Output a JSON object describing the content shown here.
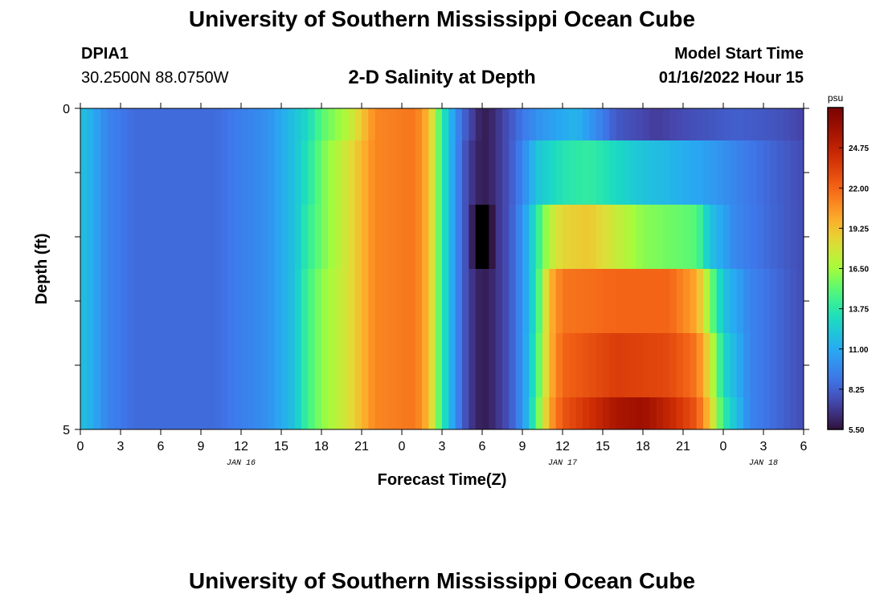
{
  "header": {
    "title": "University of Southern Mississippi Ocean Cube",
    "station_id": "DPIA1",
    "station_coords": "30.2500N  88.0750W",
    "chart_title": "2-D Salinity at Depth",
    "model_start_label": "Model Start Time",
    "model_start_value": "01/16/2022 Hour 15"
  },
  "footer": {
    "title": "University of Southern Mississippi Ocean Cube"
  },
  "chart_data": {
    "type": "heatmap",
    "title": "2-D Salinity at Depth",
    "xlabel": "Forecast Time(Z)",
    "ylabel": "Depth (ft)",
    "units": "psu",
    "xlim": [
      0,
      54
    ],
    "ylim": [
      0,
      5
    ],
    "x_tick_values": [
      0,
      3,
      6,
      9,
      12,
      15,
      18,
      21,
      24,
      27,
      30,
      33,
      36,
      39,
      42,
      45,
      48,
      51,
      54
    ],
    "x_tick_labels": [
      "0",
      "3",
      "6",
      "9",
      "12",
      "15",
      "18",
      "21",
      "0",
      "3",
      "6",
      "9",
      "12",
      "15",
      "18",
      "21",
      "0",
      "3",
      "6"
    ],
    "y_tick_labels": [
      "0",
      "5"
    ],
    "date_labels": [
      {
        "text": "JAN 16",
        "x": 12
      },
      {
        "text": "JAN 17",
        "x": 36
      },
      {
        "text": "JAN 18",
        "x": 51
      }
    ],
    "colorbar": {
      "label": "psu",
      "ticks": [
        "24.75",
        "22.00",
        "19.25",
        "16.50",
        "13.75",
        "11.00",
        "8.25",
        "5.50"
      ],
      "range": [
        5.5,
        27.5
      ]
    },
    "depth_layers": [
      0,
      0.5,
      1.5,
      2.5,
      3.5,
      4.5
    ],
    "layers": [
      {
        "depth": 0,
        "salinity_by_hour": [
          {
            "x": 0,
            "v": 12.0
          },
          {
            "x": 1,
            "v": 11.0
          },
          {
            "x": 2,
            "v": 9.5
          },
          {
            "x": 4,
            "v": 8.6
          },
          {
            "x": 10,
            "v": 8.6
          },
          {
            "x": 12,
            "v": 9.3
          },
          {
            "x": 14,
            "v": 10.0
          },
          {
            "x": 16,
            "v": 12.0
          },
          {
            "x": 17,
            "v": 13.0
          },
          {
            "x": 18,
            "v": 15.0
          },
          {
            "x": 20,
            "v": 17.0
          },
          {
            "x": 22,
            "v": 21.0
          },
          {
            "x": 25,
            "v": 21.5
          },
          {
            "x": 26,
            "v": 19.5
          },
          {
            "x": 27,
            "v": 14.0
          },
          {
            "x": 28,
            "v": 10.0
          },
          {
            "x": 29,
            "v": 7.5
          },
          {
            "x": 30,
            "v": 5.8
          },
          {
            "x": 31,
            "v": 6.5
          },
          {
            "x": 32,
            "v": 7.8
          },
          {
            "x": 33,
            "v": 9.0
          },
          {
            "x": 34,
            "v": 10.0
          },
          {
            "x": 37,
            "v": 11.5
          },
          {
            "x": 40,
            "v": 8.0
          },
          {
            "x": 43,
            "v": 7.0
          },
          {
            "x": 45,
            "v": 7.5
          },
          {
            "x": 49,
            "v": 8.2
          },
          {
            "x": 52,
            "v": 7.8
          },
          {
            "x": 54,
            "v": 7.2
          }
        ]
      },
      {
        "depth": 0.5,
        "salinity_by_hour": [
          {
            "x": 0,
            "v": 12.0
          },
          {
            "x": 1,
            "v": 11.0
          },
          {
            "x": 2,
            "v": 9.5
          },
          {
            "x": 4,
            "v": 8.6
          },
          {
            "x": 10,
            "v": 8.6
          },
          {
            "x": 12,
            "v": 9.3
          },
          {
            "x": 14,
            "v": 10.0
          },
          {
            "x": 16,
            "v": 12.0
          },
          {
            "x": 17,
            "v": 13.5
          },
          {
            "x": 18,
            "v": 15.5
          },
          {
            "x": 20,
            "v": 18.0
          },
          {
            "x": 22,
            "v": 21.0
          },
          {
            "x": 25,
            "v": 21.5
          },
          {
            "x": 26,
            "v": 19.5
          },
          {
            "x": 27,
            "v": 14.0
          },
          {
            "x": 28,
            "v": 10.0
          },
          {
            "x": 29,
            "v": 7.0
          },
          {
            "x": 30,
            "v": 5.8
          },
          {
            "x": 31,
            "v": 6.5
          },
          {
            "x": 32,
            "v": 7.8
          },
          {
            "x": 33,
            "v": 9.5
          },
          {
            "x": 34,
            "v": 12.0
          },
          {
            "x": 36,
            "v": 13.5
          },
          {
            "x": 38,
            "v": 14.0
          },
          {
            "x": 40,
            "v": 13.0
          },
          {
            "x": 42,
            "v": 12.0
          },
          {
            "x": 44,
            "v": 11.5
          },
          {
            "x": 47,
            "v": 10.5
          },
          {
            "x": 50,
            "v": 9.0
          },
          {
            "x": 54,
            "v": 7.5
          }
        ]
      },
      {
        "depth": 1.5,
        "salinity_by_hour": [
          {
            "x": 0,
            "v": 12.0
          },
          {
            "x": 1,
            "v": 11.0
          },
          {
            "x": 2,
            "v": 9.5
          },
          {
            "x": 4,
            "v": 8.6
          },
          {
            "x": 10,
            "v": 8.6
          },
          {
            "x": 12,
            "v": 9.3
          },
          {
            "x": 14,
            "v": 10.0
          },
          {
            "x": 16,
            "v": 12.0
          },
          {
            "x": 17,
            "v": 14.0
          },
          {
            "x": 18,
            "v": 15.5
          },
          {
            "x": 20,
            "v": 18.0
          },
          {
            "x": 22,
            "v": 21.0
          },
          {
            "x": 25,
            "v": 21.5
          },
          {
            "x": 26,
            "v": 19.5
          },
          {
            "x": 27,
            "v": 14.0
          },
          {
            "x": 28,
            "v": 10.0
          },
          {
            "x": 29,
            "v": 7.0
          },
          {
            "x": 30,
            "v": 3.0
          },
          {
            "x": 31,
            "v": 6.5
          },
          {
            "x": 32,
            "v": 7.8
          },
          {
            "x": 33,
            "v": 10.0
          },
          {
            "x": 34,
            "v": 13.5
          },
          {
            "x": 35,
            "v": 17.0
          },
          {
            "x": 36,
            "v": 18.5
          },
          {
            "x": 38,
            "v": 19.0
          },
          {
            "x": 40,
            "v": 17.5
          },
          {
            "x": 42,
            "v": 16.0
          },
          {
            "x": 44,
            "v": 15.5
          },
          {
            "x": 46,
            "v": 15.0
          },
          {
            "x": 47,
            "v": 12.0
          },
          {
            "x": 49,
            "v": 9.5
          },
          {
            "x": 54,
            "v": 7.5
          }
        ]
      },
      {
        "depth": 2.5,
        "salinity_by_hour": [
          {
            "x": 0,
            "v": 12.0
          },
          {
            "x": 1,
            "v": 11.0
          },
          {
            "x": 2,
            "v": 9.5
          },
          {
            "x": 4,
            "v": 8.6
          },
          {
            "x": 10,
            "v": 8.6
          },
          {
            "x": 12,
            "v": 9.3
          },
          {
            "x": 14,
            "v": 10.0
          },
          {
            "x": 16,
            "v": 12.0
          },
          {
            "x": 17,
            "v": 14.5
          },
          {
            "x": 18,
            "v": 16.0
          },
          {
            "x": 20,
            "v": 18.0
          },
          {
            "x": 22,
            "v": 21.0
          },
          {
            "x": 25,
            "v": 21.5
          },
          {
            "x": 26,
            "v": 19.5
          },
          {
            "x": 27,
            "v": 14.0
          },
          {
            "x": 28,
            "v": 10.0
          },
          {
            "x": 29,
            "v": 7.0
          },
          {
            "x": 30,
            "v": 5.8
          },
          {
            "x": 31,
            "v": 6.5
          },
          {
            "x": 32,
            "v": 7.8
          },
          {
            "x": 33,
            "v": 10.0
          },
          {
            "x": 34,
            "v": 13.5
          },
          {
            "x": 35,
            "v": 19.5
          },
          {
            "x": 36,
            "v": 21.5
          },
          {
            "x": 40,
            "v": 22.0
          },
          {
            "x": 44,
            "v": 22.0
          },
          {
            "x": 46,
            "v": 20.0
          },
          {
            "x": 47,
            "v": 16.0
          },
          {
            "x": 48,
            "v": 12.0
          },
          {
            "x": 50,
            "v": 9.5
          },
          {
            "x": 54,
            "v": 7.5
          }
        ]
      },
      {
        "depth": 3.5,
        "salinity_by_hour": [
          {
            "x": 0,
            "v": 12.0
          },
          {
            "x": 1,
            "v": 11.0
          },
          {
            "x": 2,
            "v": 9.5
          },
          {
            "x": 4,
            "v": 8.6
          },
          {
            "x": 10,
            "v": 8.6
          },
          {
            "x": 12,
            "v": 9.3
          },
          {
            "x": 14,
            "v": 10.0
          },
          {
            "x": 16,
            "v": 12.0
          },
          {
            "x": 17,
            "v": 14.5
          },
          {
            "x": 18,
            "v": 16.0
          },
          {
            "x": 20,
            "v": 18.0
          },
          {
            "x": 22,
            "v": 21.0
          },
          {
            "x": 25,
            "v": 21.5
          },
          {
            "x": 26,
            "v": 19.5
          },
          {
            "x": 27,
            "v": 14.0
          },
          {
            "x": 28,
            "v": 10.0
          },
          {
            "x": 29,
            "v": 7.0
          },
          {
            "x": 30,
            "v": 5.8
          },
          {
            "x": 31,
            "v": 6.5
          },
          {
            "x": 32,
            "v": 7.8
          },
          {
            "x": 33,
            "v": 10.0
          },
          {
            "x": 34,
            "v": 14.0
          },
          {
            "x": 35,
            "v": 19.5
          },
          {
            "x": 36,
            "v": 22.0
          },
          {
            "x": 40,
            "v": 23.5
          },
          {
            "x": 44,
            "v": 23.0
          },
          {
            "x": 46,
            "v": 21.5
          },
          {
            "x": 47,
            "v": 18.0
          },
          {
            "x": 48,
            "v": 13.0
          },
          {
            "x": 50,
            "v": 9.5
          },
          {
            "x": 54,
            "v": 7.5
          }
        ]
      },
      {
        "depth": 4.5,
        "salinity_by_hour": [
          {
            "x": 0,
            "v": 12.0
          },
          {
            "x": 1,
            "v": 11.0
          },
          {
            "x": 2,
            "v": 9.5
          },
          {
            "x": 4,
            "v": 8.6
          },
          {
            "x": 10,
            "v": 8.6
          },
          {
            "x": 12,
            "v": 9.3
          },
          {
            "x": 14,
            "v": 10.0
          },
          {
            "x": 16,
            "v": 12.0
          },
          {
            "x": 17,
            "v": 14.5
          },
          {
            "x": 18,
            "v": 16.0
          },
          {
            "x": 20,
            "v": 18.0
          },
          {
            "x": 22,
            "v": 21.0
          },
          {
            "x": 25,
            "v": 21.5
          },
          {
            "x": 26,
            "v": 19.5
          },
          {
            "x": 27,
            "v": 14.0
          },
          {
            "x": 28,
            "v": 10.0
          },
          {
            "x": 29,
            "v": 7.0
          },
          {
            "x": 30,
            "v": 5.8
          },
          {
            "x": 31,
            "v": 6.5
          },
          {
            "x": 32,
            "v": 7.8
          },
          {
            "x": 33,
            "v": 10.0
          },
          {
            "x": 34,
            "v": 14.5
          },
          {
            "x": 35,
            "v": 20.0
          },
          {
            "x": 36,
            "v": 22.5
          },
          {
            "x": 40,
            "v": 25.5
          },
          {
            "x": 42,
            "v": 26.0
          },
          {
            "x": 44,
            "v": 24.5
          },
          {
            "x": 46,
            "v": 22.5
          },
          {
            "x": 47,
            "v": 19.0
          },
          {
            "x": 48,
            "v": 14.0
          },
          {
            "x": 50,
            "v": 9.5
          },
          {
            "x": 54,
            "v": 7.5
          }
        ]
      }
    ]
  }
}
